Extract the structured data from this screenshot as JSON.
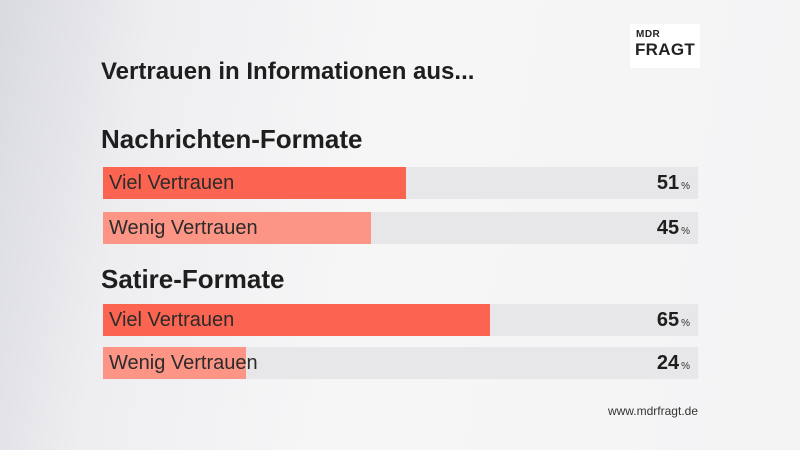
{
  "logo": {
    "line1": "MDR",
    "line2": "FRAGT"
  },
  "title": "Vertrauen in Informationen aus...",
  "footer": "www.mdrfragt.de",
  "colors": {
    "strong": "#fb6450",
    "light": "#fc9585",
    "track": "#e7e7e9"
  },
  "chart_data": {
    "type": "bar",
    "orientation": "horizontal",
    "title": "Vertrauen in Informationen aus...",
    "unit": "%",
    "xlim": [
      0,
      100
    ],
    "groups": [
      {
        "name": "Nachrichten-Formate",
        "bars": [
          {
            "label": "Viel Vertrauen",
            "value": 51,
            "unit": "%"
          },
          {
            "label": "Wenig Vertrauen",
            "value": 45,
            "unit": "%"
          }
        ]
      },
      {
        "name": "Satire-Formate",
        "bars": [
          {
            "label": "Viel Vertrauen",
            "value": 65,
            "unit": "%"
          },
          {
            "label": "Wenig Vertrauen",
            "value": 24,
            "unit": "%"
          }
        ]
      }
    ]
  }
}
